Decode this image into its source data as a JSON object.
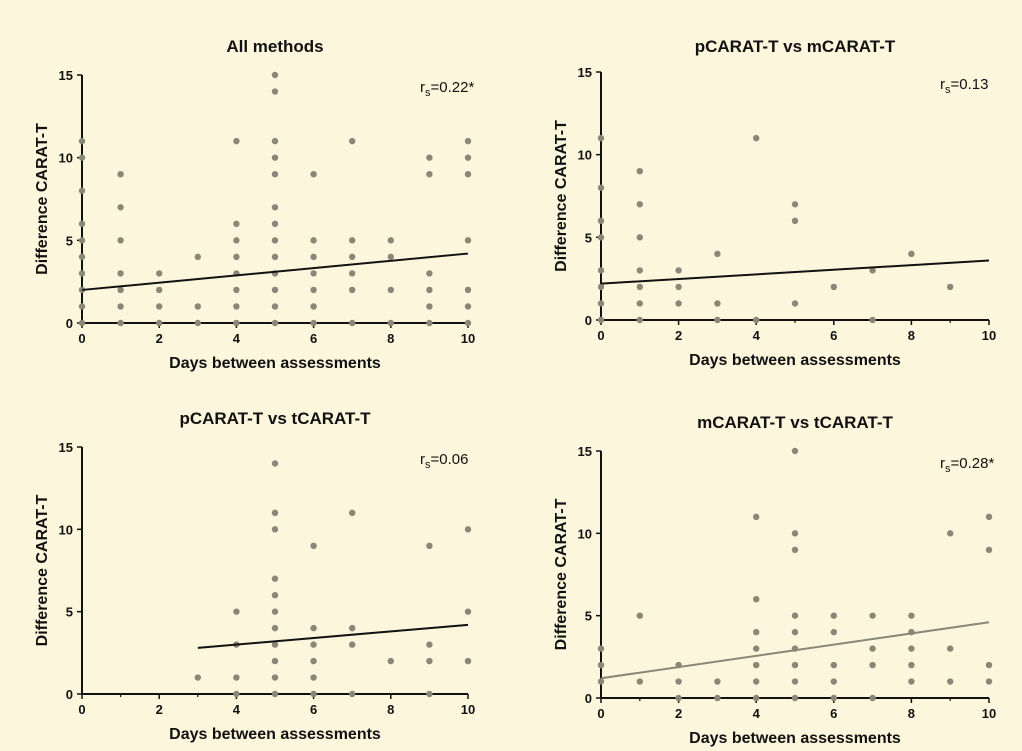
{
  "colors": {
    "background": "#fbf6dc",
    "points": "#8a8678",
    "fit_black": "#111111",
    "fit_gray": "#8a8678",
    "axis": "#111111"
  },
  "chart_data": [
    {
      "type": "scatter",
      "title": "All methods",
      "xlabel": "Days between assessments",
      "ylabel": "Difference CARAT-T",
      "annotation": {
        "base": "r",
        "sub": "s",
        "value": "=0.22*"
      },
      "xlim": [
        0,
        10
      ],
      "ylim": [
        0,
        15
      ],
      "xticks": [
        "0",
        "2",
        "4",
        "6",
        "8",
        "10"
      ],
      "yticks": [
        "0",
        "5",
        "10",
        "15"
      ],
      "points": [
        [
          0,
          0
        ],
        [
          0,
          1
        ],
        [
          0,
          2
        ],
        [
          0,
          3
        ],
        [
          0,
          4
        ],
        [
          0,
          5
        ],
        [
          0,
          6
        ],
        [
          0,
          8
        ],
        [
          0,
          10
        ],
        [
          0,
          11
        ],
        [
          1,
          0
        ],
        [
          1,
          1
        ],
        [
          1,
          2
        ],
        [
          1,
          3
        ],
        [
          1,
          5
        ],
        [
          1,
          7
        ],
        [
          1,
          9
        ],
        [
          2,
          0
        ],
        [
          2,
          1
        ],
        [
          2,
          2
        ],
        [
          2,
          3
        ],
        [
          3,
          0
        ],
        [
          3,
          1
        ],
        [
          3,
          4
        ],
        [
          4,
          0
        ],
        [
          4,
          1
        ],
        [
          4,
          2
        ],
        [
          4,
          3
        ],
        [
          4,
          4
        ],
        [
          4,
          5
        ],
        [
          4,
          6
        ],
        [
          4,
          11
        ],
        [
          5,
          0
        ],
        [
          5,
          1
        ],
        [
          5,
          2
        ],
        [
          5,
          3
        ],
        [
          5,
          4
        ],
        [
          5,
          5
        ],
        [
          5,
          6
        ],
        [
          5,
          7
        ],
        [
          5,
          9
        ],
        [
          5,
          10
        ],
        [
          5,
          11
        ],
        [
          5,
          14
        ],
        [
          5,
          15
        ],
        [
          6,
          0
        ],
        [
          6,
          1
        ],
        [
          6,
          2
        ],
        [
          6,
          3
        ],
        [
          6,
          4
        ],
        [
          6,
          5
        ],
        [
          6,
          9
        ],
        [
          7,
          0
        ],
        [
          7,
          2
        ],
        [
          7,
          3
        ],
        [
          7,
          4
        ],
        [
          7,
          5
        ],
        [
          7,
          11
        ],
        [
          8,
          0
        ],
        [
          8,
          2
        ],
        [
          8,
          4
        ],
        [
          8,
          5
        ],
        [
          9,
          0
        ],
        [
          9,
          1
        ],
        [
          9,
          2
        ],
        [
          9,
          3
        ],
        [
          9,
          9
        ],
        [
          9,
          10
        ],
        [
          10,
          0
        ],
        [
          10,
          1
        ],
        [
          10,
          2
        ],
        [
          10,
          5
        ],
        [
          10,
          9
        ],
        [
          10,
          10
        ],
        [
          10,
          11
        ]
      ],
      "fit": {
        "x": [
          0,
          10
        ],
        "y": [
          2.0,
          4.2
        ],
        "color": "black"
      }
    },
    {
      "type": "scatter",
      "title": "pCARAT-T vs mCARAT-T",
      "xlabel": "Days between assessments",
      "ylabel": "Difference CARAT-T",
      "annotation": {
        "base": "r",
        "sub": "s",
        "value": "=0.13"
      },
      "xlim": [
        0,
        10
      ],
      "ylim": [
        0,
        15
      ],
      "xticks": [
        "0",
        "2",
        "4",
        "6",
        "8",
        "10"
      ],
      "yticks": [
        "0",
        "5",
        "10",
        "15"
      ],
      "points": [
        [
          0,
          0
        ],
        [
          0,
          1
        ],
        [
          0,
          2
        ],
        [
          0,
          3
        ],
        [
          0,
          5
        ],
        [
          0,
          6
        ],
        [
          0,
          8
        ],
        [
          0,
          11
        ],
        [
          1,
          0
        ],
        [
          1,
          1
        ],
        [
          1,
          2
        ],
        [
          1,
          3
        ],
        [
          1,
          5
        ],
        [
          1,
          7
        ],
        [
          1,
          9
        ],
        [
          2,
          1
        ],
        [
          2,
          2
        ],
        [
          2,
          3
        ],
        [
          3,
          0
        ],
        [
          3,
          1
        ],
        [
          3,
          4
        ],
        [
          4,
          0
        ],
        [
          4,
          11
        ],
        [
          5,
          1
        ],
        [
          5,
          6
        ],
        [
          5,
          7
        ],
        [
          6,
          2
        ],
        [
          7,
          0
        ],
        [
          7,
          3
        ],
        [
          8,
          4
        ],
        [
          9,
          2
        ]
      ],
      "fit": {
        "x": [
          0,
          10
        ],
        "y": [
          2.2,
          3.6
        ],
        "color": "black"
      }
    },
    {
      "type": "scatter",
      "title": "pCARAT-T vs tCARAT-T",
      "xlabel": "Days between assessments",
      "ylabel": "Difference CARAT-T",
      "annotation": {
        "base": "r",
        "sub": "s",
        "value": "=0.06"
      },
      "xlim": [
        0,
        10
      ],
      "ylim": [
        0,
        15
      ],
      "xticks": [
        "0",
        "2",
        "4",
        "6",
        "8",
        "10"
      ],
      "yticks": [
        "0",
        "5",
        "10",
        "15"
      ],
      "points": [
        [
          3,
          1
        ],
        [
          4,
          0
        ],
        [
          4,
          1
        ],
        [
          4,
          3
        ],
        [
          4,
          5
        ],
        [
          5,
          0
        ],
        [
          5,
          1
        ],
        [
          5,
          2
        ],
        [
          5,
          3
        ],
        [
          5,
          4
        ],
        [
          5,
          5
        ],
        [
          5,
          6
        ],
        [
          5,
          7
        ],
        [
          5,
          10
        ],
        [
          5,
          11
        ],
        [
          5,
          14
        ],
        [
          6,
          0
        ],
        [
          6,
          1
        ],
        [
          6,
          2
        ],
        [
          6,
          3
        ],
        [
          6,
          4
        ],
        [
          6,
          9
        ],
        [
          7,
          0
        ],
        [
          7,
          3
        ],
        [
          7,
          4
        ],
        [
          7,
          11
        ],
        [
          8,
          2
        ],
        [
          9,
          0
        ],
        [
          9,
          2
        ],
        [
          9,
          3
        ],
        [
          9,
          9
        ],
        [
          10,
          2
        ],
        [
          10,
          5
        ],
        [
          10,
          10
        ]
      ],
      "fit": {
        "x": [
          3,
          10
        ],
        "y": [
          2.8,
          4.2
        ],
        "color": "black"
      }
    },
    {
      "type": "scatter",
      "title": "mCARAT-T vs tCARAT-T",
      "xlabel": "Days between assessments",
      "ylabel": "Difference CARAT-T",
      "annotation": {
        "base": "r",
        "sub": "s",
        "value": "=0.28*"
      },
      "xlim": [
        0,
        10
      ],
      "ylim": [
        0,
        15
      ],
      "xticks": [
        "0",
        "2",
        "4",
        "6",
        "8",
        "10"
      ],
      "yticks": [
        "0",
        "5",
        "10",
        "15"
      ],
      "points": [
        [
          0,
          1
        ],
        [
          0,
          2
        ],
        [
          0,
          3
        ],
        [
          1,
          1
        ],
        [
          1,
          5
        ],
        [
          2,
          0
        ],
        [
          2,
          1
        ],
        [
          2,
          2
        ],
        [
          3,
          0
        ],
        [
          3,
          1
        ],
        [
          4,
          0
        ],
        [
          4,
          1
        ],
        [
          4,
          2
        ],
        [
          4,
          3
        ],
        [
          4,
          4
        ],
        [
          4,
          6
        ],
        [
          4,
          11
        ],
        [
          5,
          0
        ],
        [
          5,
          1
        ],
        [
          5,
          2
        ],
        [
          5,
          3
        ],
        [
          5,
          4
        ],
        [
          5,
          5
        ],
        [
          5,
          9
        ],
        [
          5,
          10
        ],
        [
          5,
          15
        ],
        [
          6,
          0
        ],
        [
          6,
          1
        ],
        [
          6,
          2
        ],
        [
          6,
          4
        ],
        [
          6,
          5
        ],
        [
          7,
          0
        ],
        [
          7,
          2
        ],
        [
          7,
          3
        ],
        [
          7,
          5
        ],
        [
          8,
          1
        ],
        [
          8,
          2
        ],
        [
          8,
          3
        ],
        [
          8,
          4
        ],
        [
          8,
          5
        ],
        [
          9,
          1
        ],
        [
          9,
          3
        ],
        [
          9,
          10
        ],
        [
          10,
          1
        ],
        [
          10,
          2
        ],
        [
          10,
          9
        ],
        [
          10,
          11
        ]
      ],
      "fit": {
        "x": [
          0,
          10
        ],
        "y": [
          1.2,
          4.6
        ],
        "color": "gray"
      }
    }
  ]
}
